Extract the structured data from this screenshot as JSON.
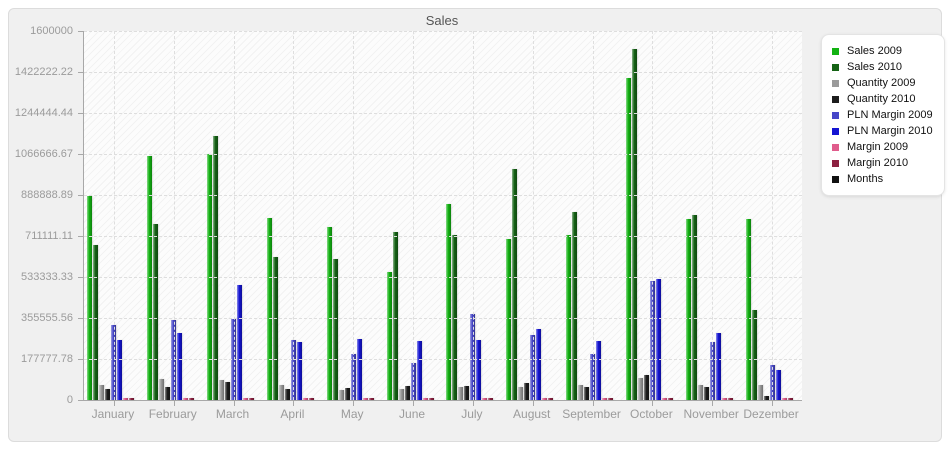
{
  "chart_data": {
    "type": "bar",
    "title": "Sales",
    "categories": [
      "January",
      "February",
      "March",
      "April",
      "May",
      "June",
      "July",
      "August",
      "September",
      "October",
      "November",
      "Dezember"
    ],
    "series": [
      {
        "name": "Sales 2009",
        "color": "#12b212",
        "values": [
          885000,
          1060000,
          1065000,
          790000,
          752000,
          557000,
          848000,
          700000,
          717000,
          1395000,
          783000,
          783000
        ]
      },
      {
        "name": "Sales 2010",
        "color": "#156315",
        "values": [
          670000,
          765000,
          1143000,
          620000,
          613000,
          730000,
          717000,
          1000000,
          817000,
          1520000,
          804000,
          391000
        ]
      },
      {
        "name": "Quantity 2009",
        "color": "#9a9a9a",
        "values": [
          65000,
          91000,
          87000,
          65000,
          43000,
          48000,
          57000,
          57000,
          65000,
          96000,
          65000,
          65000
        ]
      },
      {
        "name": "Quantity 2010",
        "color": "#1c1c1c",
        "values": [
          48000,
          57000,
          78000,
          48000,
          52000,
          61000,
          61000,
          74000,
          57000,
          109000,
          55000,
          17000
        ]
      },
      {
        "name": "PLN Margin 2009",
        "color": "#4646c8",
        "values": [
          325000,
          348000,
          352000,
          260000,
          200000,
          161000,
          374000,
          283000,
          200000,
          517000,
          250000,
          152000
        ]
      },
      {
        "name": "PLN Margin 2010",
        "color": "#1414d2",
        "values": [
          260000,
          290000,
          500000,
          252000,
          265000,
          257000,
          261000,
          309000,
          257000,
          526000,
          291000,
          130000
        ]
      },
      {
        "name": "Margin 2009",
        "color": "#e05c8c",
        "values": [
          10000,
          10000,
          10000,
          10000,
          10000,
          10000,
          10000,
          10000,
          10000,
          10000,
          10000,
          10000
        ]
      },
      {
        "name": "Margin 2010",
        "color": "#8c2040",
        "values": [
          8000,
          8000,
          8000,
          8000,
          8000,
          8000,
          8000,
          8000,
          8000,
          8000,
          8000,
          8000
        ]
      },
      {
        "name": "Months",
        "color": "#111111",
        "values": [
          0,
          0,
          0,
          0,
          0,
          0,
          0,
          0,
          0,
          0,
          0,
          0
        ]
      }
    ],
    "ylim": [
      0,
      1600000
    ],
    "yticks": [
      "1600000",
      "1422222.22",
      "1244444.44",
      "1066666.67",
      "888888.89",
      "711111.11",
      "533333.33",
      "355555.56",
      "177777.78",
      "0"
    ],
    "grid": "dashed horizontal lines at each y tick, dashed vertical line at each month center",
    "legend_position": "right",
    "plot_background": "white with light diagonal hatch"
  }
}
